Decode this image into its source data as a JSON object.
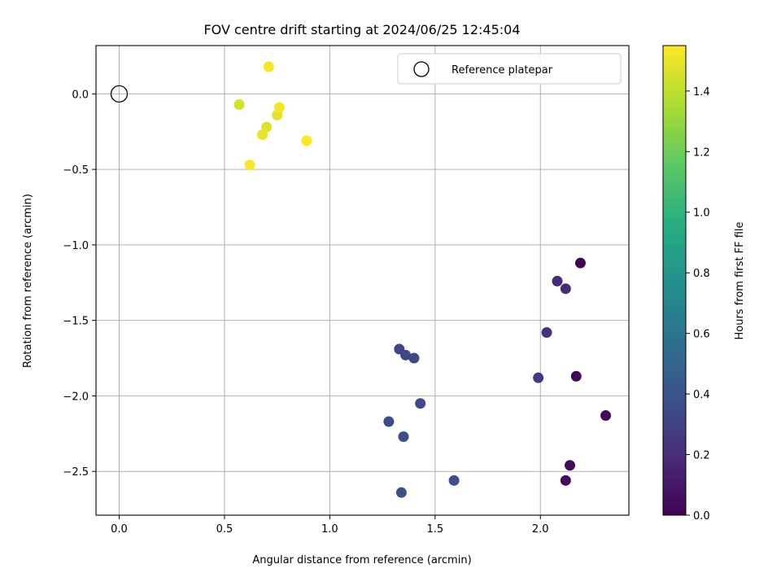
{
  "chart_data": {
    "type": "scatter",
    "title": "FOV centre drift starting at 2024/06/25 12:45:04",
    "xlabel": "Angular distance from reference (arcmin)",
    "ylabel": "Rotation from reference (arcmin)",
    "xlim": [
      -0.11,
      2.42
    ],
    "ylim": [
      -2.79,
      0.32
    ],
    "xticks": [
      0.0,
      0.5,
      1.0,
      1.5,
      2.0
    ],
    "xtick_labels": [
      "0.0",
      "0.5",
      "1.0",
      "1.5",
      "2.0"
    ],
    "yticks": [
      0.0,
      -0.5,
      -1.0,
      -1.5,
      -2.0,
      -2.5
    ],
    "ytick_labels": [
      "0.0",
      "−0.5",
      "−1.0",
      "−1.5",
      "−2.0",
      "−2.5"
    ],
    "grid": true,
    "legend": {
      "placement": "top-right",
      "entries": [
        "Reference platepar"
      ]
    },
    "reference_point": {
      "x": 0.0,
      "y": 0.0,
      "label": "Reference platepar"
    },
    "colorbar": {
      "label": "Hours from first FF file",
      "colormap": "viridis",
      "range": [
        0.0,
        1.55
      ],
      "ticks": [
        0.0,
        0.2,
        0.4,
        0.6,
        0.8,
        1.0,
        1.2,
        1.4
      ],
      "tick_labels": [
        "0.0",
        "0.2",
        "0.4",
        "0.6",
        "0.8",
        "1.0",
        "1.2",
        "1.4"
      ]
    },
    "points": [
      {
        "x": 2.19,
        "y": -1.12,
        "c": 0.0
      },
      {
        "x": 2.17,
        "y": -1.87,
        "c": 0.02
      },
      {
        "x": 2.31,
        "y": -2.13,
        "c": 0.03
      },
      {
        "x": 2.14,
        "y": -2.46,
        "c": 0.04
      },
      {
        "x": 2.12,
        "y": -2.56,
        "c": 0.05
      },
      {
        "x": 2.08,
        "y": -1.24,
        "c": 0.18
      },
      {
        "x": 2.12,
        "y": -1.29,
        "c": 0.19
      },
      {
        "x": 2.03,
        "y": -1.58,
        "c": 0.22
      },
      {
        "x": 1.99,
        "y": -1.88,
        "c": 0.25
      },
      {
        "x": 1.33,
        "y": -1.69,
        "c": 0.31
      },
      {
        "x": 1.36,
        "y": -1.73,
        "c": 0.32
      },
      {
        "x": 1.4,
        "y": -1.75,
        "c": 0.33
      },
      {
        "x": 1.43,
        "y": -2.05,
        "c": 0.34
      },
      {
        "x": 1.28,
        "y": -2.17,
        "c": 0.35
      },
      {
        "x": 1.35,
        "y": -2.27,
        "c": 0.36
      },
      {
        "x": 1.59,
        "y": -2.56,
        "c": 0.37
      },
      {
        "x": 1.34,
        "y": -2.64,
        "c": 0.38
      },
      {
        "x": 0.57,
        "y": -0.07,
        "c": 1.45
      },
      {
        "x": 0.7,
        "y": -0.22,
        "c": 1.47
      },
      {
        "x": 0.68,
        "y": -0.27,
        "c": 1.49
      },
      {
        "x": 0.75,
        "y": -0.14,
        "c": 1.48
      },
      {
        "x": 0.76,
        "y": -0.09,
        "c": 1.52
      },
      {
        "x": 0.71,
        "y": 0.18,
        "c": 1.53
      },
      {
        "x": 0.62,
        "y": -0.47,
        "c": 1.54
      },
      {
        "x": 0.89,
        "y": -0.31,
        "c": 1.55
      }
    ]
  }
}
